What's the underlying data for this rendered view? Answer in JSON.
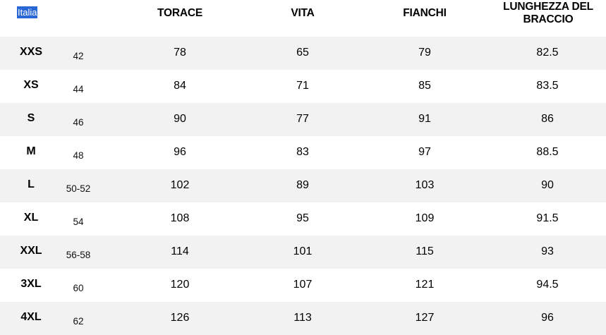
{
  "table": {
    "region_label": "Italia",
    "headers": {
      "chest": "TORACE",
      "waist": "VITA",
      "hips": "FIANCHI",
      "arm_length_line1": "LUNGHEZZA DEL",
      "arm_length_line2": "BRACCIO"
    },
    "rows": [
      {
        "size": "XXS",
        "italian": "42",
        "chest": "78",
        "waist": "65",
        "hips": "79",
        "arm": "82.5"
      },
      {
        "size": "XS",
        "italian": "44",
        "chest": "84",
        "waist": "71",
        "hips": "85",
        "arm": "83.5"
      },
      {
        "size": "S",
        "italian": "46",
        "chest": "90",
        "waist": "77",
        "hips": "91",
        "arm": "86"
      },
      {
        "size": "M",
        "italian": "48",
        "chest": "96",
        "waist": "83",
        "hips": "97",
        "arm": "88.5"
      },
      {
        "size": "L",
        "italian": "50-52",
        "chest": "102",
        "waist": "89",
        "hips": "103",
        "arm": "90"
      },
      {
        "size": "XL",
        "italian": "54",
        "chest": "108",
        "waist": "95",
        "hips": "109",
        "arm": "91.5"
      },
      {
        "size": "XXL",
        "italian": "56-58",
        "chest": "114",
        "waist": "101",
        "hips": "115",
        "arm": "93"
      },
      {
        "size": "3XL",
        "italian": "60",
        "chest": "120",
        "waist": "107",
        "hips": "121",
        "arm": "94.5"
      },
      {
        "size": "4XL",
        "italian": "62",
        "chest": "126",
        "waist": "113",
        "hips": "127",
        "arm": "96"
      }
    ],
    "colors": {
      "shaded_row": "#f2f2f2",
      "selection_highlight": "#2a67d6"
    }
  }
}
